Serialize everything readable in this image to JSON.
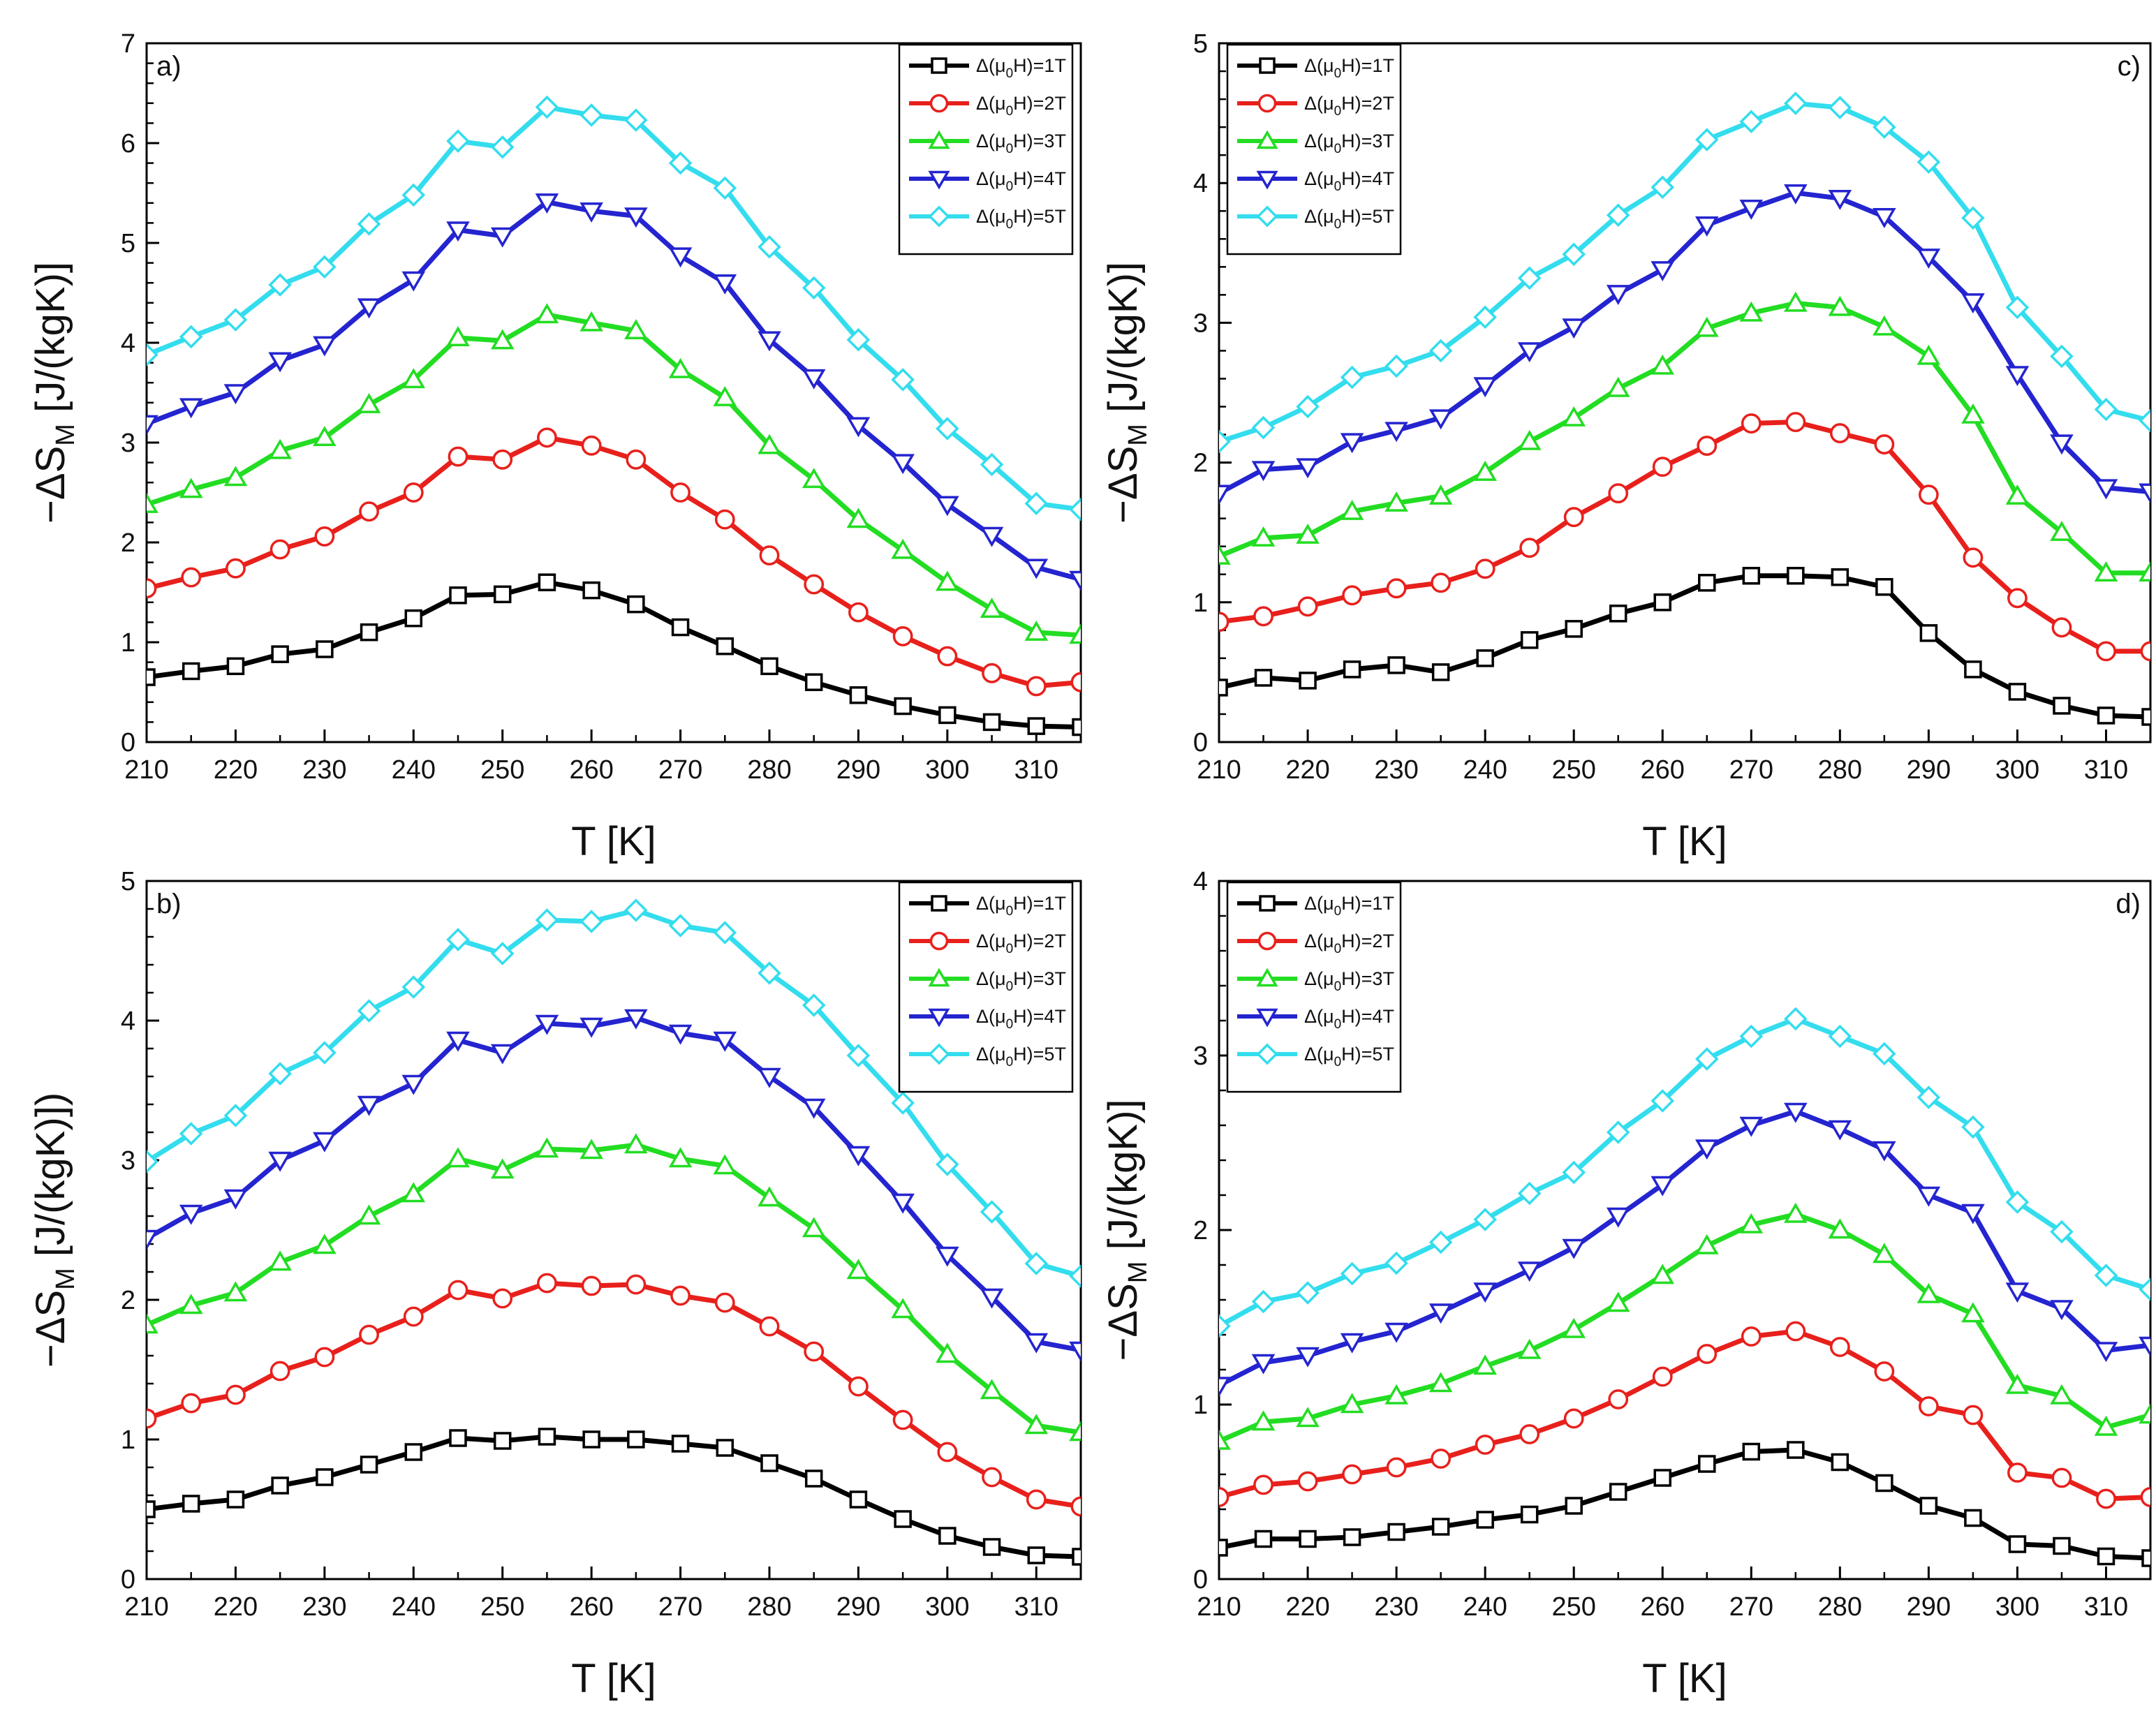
{
  "figure": {
    "description_free": true,
    "panels": [
      "a",
      "b",
      "c",
      "d"
    ]
  },
  "legend_labels": [
    "Δ(μ0H)=1T",
    "Δ(μ0H)=2T",
    "Δ(μ0H)=3T",
    "Δ(μ0H)=4T",
    "Δ(μ0H)=5T"
  ],
  "colors": {
    "1T": "#000000",
    "2T": "#e8201c",
    "3T": "#22dd22",
    "4T": "#2424d0",
    "5T": "#33ddee"
  },
  "markers": [
    "square",
    "circle",
    "triangle-up",
    "triangle-down",
    "diamond"
  ],
  "chart_data": [
    {
      "id": "a",
      "panel_label": "a)",
      "type": "line",
      "xlabel": "T [K]",
      "ylabel_main": "−ΔS",
      "ylabel_sub": "M",
      "ylabel_unit": " [J/(kgK)]",
      "xlim": [
        210,
        315
      ],
      "ylim": [
        0,
        7
      ],
      "xticks": [
        210,
        220,
        230,
        240,
        250,
        260,
        270,
        280,
        290,
        300,
        310
      ],
      "yticks": [
        0,
        1,
        2,
        3,
        4,
        5,
        6,
        7
      ],
      "legend_position": "top-right",
      "x": [
        210,
        215,
        220,
        225,
        230,
        235,
        240,
        245,
        250,
        255,
        260,
        265,
        270,
        275,
        280,
        285,
        290,
        295,
        300,
        305,
        310,
        315
      ],
      "series": [
        {
          "name": "Δ(μ0H)=1T",
          "values": [
            0.65,
            0.71,
            0.76,
            0.88,
            0.93,
            1.1,
            1.24,
            1.47,
            1.48,
            1.6,
            1.52,
            1.38,
            1.15,
            0.96,
            0.76,
            0.6,
            0.47,
            0.36,
            0.27,
            0.2,
            0.16,
            0.15
          ]
        },
        {
          "name": "Δ(μ0H)=2T",
          "values": [
            1.54,
            1.65,
            1.74,
            1.93,
            2.06,
            2.31,
            2.5,
            2.86,
            2.83,
            3.05,
            2.97,
            2.83,
            2.5,
            2.23,
            1.87,
            1.58,
            1.3,
            1.06,
            0.86,
            0.69,
            0.56,
            0.6
          ]
        },
        {
          "name": "Δ(μ0H)=3T",
          "values": [
            2.38,
            2.53,
            2.65,
            2.92,
            3.05,
            3.38,
            3.63,
            4.05,
            4.02,
            4.28,
            4.2,
            4.12,
            3.73,
            3.45,
            2.97,
            2.63,
            2.23,
            1.92,
            1.6,
            1.33,
            1.1,
            1.07
          ]
        },
        {
          "name": "Δ(μ0H)=4T",
          "values": [
            3.19,
            3.36,
            3.5,
            3.82,
            3.98,
            4.36,
            4.63,
            5.13,
            5.07,
            5.41,
            5.32,
            5.27,
            4.87,
            4.6,
            4.03,
            3.65,
            3.17,
            2.8,
            2.38,
            2.07,
            1.75,
            1.63
          ]
        },
        {
          "name": "Δ(μ0H)=5T",
          "values": [
            3.88,
            4.06,
            4.23,
            4.58,
            4.76,
            5.19,
            5.48,
            6.02,
            5.96,
            6.36,
            6.28,
            6.23,
            5.8,
            5.55,
            4.96,
            4.55,
            4.03,
            3.63,
            3.14,
            2.78,
            2.39,
            2.33
          ]
        }
      ]
    },
    {
      "id": "b",
      "panel_label": "b)",
      "type": "line",
      "xlabel": "T [K]",
      "ylabel_main": "−ΔS",
      "ylabel_sub": "M",
      "ylabel_unit": " [J/(kgK)])",
      "xlim": [
        210,
        315
      ],
      "ylim": [
        0,
        5
      ],
      "xticks": [
        210,
        220,
        230,
        240,
        250,
        260,
        270,
        280,
        290,
        300,
        310
      ],
      "yticks": [
        0,
        1,
        2,
        3,
        4,
        5
      ],
      "legend_position": "top-right",
      "x": [
        210,
        215,
        220,
        225,
        230,
        235,
        240,
        245,
        250,
        255,
        260,
        265,
        270,
        275,
        280,
        285,
        290,
        295,
        300,
        305,
        310,
        315
      ],
      "series": [
        {
          "name": "Δ(μ0H)=1T",
          "values": [
            0.5,
            0.54,
            0.57,
            0.67,
            0.73,
            0.82,
            0.91,
            1.01,
            0.99,
            1.02,
            1.0,
            1.0,
            0.97,
            0.94,
            0.83,
            0.72,
            0.57,
            0.43,
            0.31,
            0.23,
            0.17,
            0.16
          ]
        },
        {
          "name": "Δ(μ0H)=2T",
          "values": [
            1.15,
            1.26,
            1.32,
            1.49,
            1.59,
            1.75,
            1.88,
            2.07,
            2.01,
            2.12,
            2.1,
            2.11,
            2.03,
            1.98,
            1.81,
            1.63,
            1.38,
            1.14,
            0.91,
            0.73,
            0.57,
            0.52
          ]
        },
        {
          "name": "Δ(μ0H)=3T",
          "values": [
            1.82,
            1.96,
            2.05,
            2.27,
            2.39,
            2.6,
            2.76,
            3.01,
            2.93,
            3.08,
            3.07,
            3.11,
            3.01,
            2.96,
            2.73,
            2.51,
            2.21,
            1.93,
            1.61,
            1.35,
            1.1,
            1.05
          ]
        },
        {
          "name": "Δ(μ0H)=4T",
          "values": [
            2.44,
            2.62,
            2.73,
            3.0,
            3.14,
            3.4,
            3.55,
            3.86,
            3.77,
            3.98,
            3.96,
            4.02,
            3.91,
            3.86,
            3.6,
            3.38,
            3.04,
            2.7,
            2.32,
            2.02,
            1.7,
            1.64
          ]
        },
        {
          "name": "Δ(μ0H)=5T",
          "values": [
            2.99,
            3.19,
            3.32,
            3.62,
            3.77,
            4.07,
            4.24,
            4.58,
            4.48,
            4.72,
            4.71,
            4.79,
            4.68,
            4.63,
            4.34,
            4.11,
            3.75,
            3.41,
            2.97,
            2.63,
            2.26,
            2.17
          ]
        }
      ]
    },
    {
      "id": "c",
      "panel_label": "c)",
      "type": "line",
      "xlabel": "T [K]",
      "ylabel_main": "−ΔS",
      "ylabel_sub": "M",
      "ylabel_unit": " [J/(kgK)]",
      "xlim": [
        210,
        315
      ],
      "ylim": [
        0,
        5
      ],
      "xticks": [
        210,
        220,
        230,
        240,
        250,
        260,
        270,
        280,
        290,
        300,
        310
      ],
      "yticks": [
        0,
        1,
        2,
        3,
        4,
        5
      ],
      "legend_position": "top-left",
      "x": [
        210,
        215,
        220,
        225,
        230,
        235,
        240,
        245,
        250,
        255,
        260,
        265,
        270,
        275,
        280,
        285,
        290,
        295,
        300,
        305,
        310,
        315
      ],
      "series": [
        {
          "name": "Δ(μ0H)=1T",
          "values": [
            0.39,
            0.46,
            0.44,
            0.52,
            0.55,
            0.5,
            0.6,
            0.73,
            0.81,
            0.92,
            1.0,
            1.14,
            1.19,
            1.19,
            1.18,
            1.11,
            0.78,
            0.52,
            0.36,
            0.26,
            0.19,
            0.18
          ]
        },
        {
          "name": "Δ(μ0H)=2T",
          "values": [
            0.86,
            0.9,
            0.97,
            1.05,
            1.1,
            1.14,
            1.24,
            1.39,
            1.61,
            1.78,
            1.97,
            2.12,
            2.28,
            2.29,
            2.21,
            2.13,
            1.77,
            1.32,
            1.03,
            0.82,
            0.65,
            0.65
          ]
        },
        {
          "name": "Δ(μ0H)=3T",
          "values": [
            1.33,
            1.46,
            1.48,
            1.65,
            1.71,
            1.76,
            1.93,
            2.15,
            2.32,
            2.53,
            2.69,
            2.96,
            3.07,
            3.14,
            3.11,
            2.97,
            2.76,
            2.34,
            1.76,
            1.5,
            1.21,
            1.21
          ]
        },
        {
          "name": "Δ(μ0H)=4T",
          "values": [
            1.78,
            1.95,
            1.97,
            2.15,
            2.23,
            2.32,
            2.55,
            2.8,
            2.97,
            3.21,
            3.38,
            3.7,
            3.82,
            3.93,
            3.89,
            3.76,
            3.47,
            3.15,
            2.63,
            2.14,
            1.82,
            1.79
          ]
        },
        {
          "name": "Δ(μ0H)=5T",
          "values": [
            2.15,
            2.25,
            2.4,
            2.61,
            2.69,
            2.8,
            3.04,
            3.32,
            3.49,
            3.77,
            3.97,
            4.31,
            4.44,
            4.57,
            4.54,
            4.4,
            4.15,
            3.75,
            3.11,
            2.76,
            2.38,
            2.3
          ]
        }
      ]
    },
    {
      "id": "d",
      "panel_label": "d)",
      "type": "line",
      "xlabel": "T [K]",
      "ylabel_main": "−ΔS",
      "ylabel_sub": "M",
      "ylabel_unit": " [J/(kgK)]",
      "xlim": [
        210,
        315
      ],
      "ylim": [
        0,
        4
      ],
      "xticks": [
        210,
        220,
        230,
        240,
        250,
        260,
        270,
        280,
        290,
        300,
        310
      ],
      "yticks": [
        0,
        1,
        2,
        3,
        4
      ],
      "legend_position": "top-left",
      "x": [
        210,
        215,
        220,
        225,
        230,
        235,
        240,
        245,
        250,
        255,
        260,
        265,
        270,
        275,
        280,
        285,
        290,
        295,
        300,
        305,
        310,
        315
      ],
      "series": [
        {
          "name": "Δ(μ0H)=1T",
          "values": [
            0.18,
            0.23,
            0.23,
            0.24,
            0.27,
            0.3,
            0.34,
            0.37,
            0.42,
            0.5,
            0.58,
            0.66,
            0.73,
            0.74,
            0.67,
            0.55,
            0.42,
            0.35,
            0.2,
            0.19,
            0.13,
            0.12
          ]
        },
        {
          "name": "Δ(μ0H)=2T",
          "values": [
            0.47,
            0.54,
            0.56,
            0.6,
            0.64,
            0.69,
            0.77,
            0.83,
            0.92,
            1.03,
            1.16,
            1.29,
            1.39,
            1.42,
            1.33,
            1.19,
            0.99,
            0.94,
            0.61,
            0.58,
            0.46,
            0.47
          ]
        },
        {
          "name": "Δ(μ0H)=3T",
          "values": [
            0.79,
            0.9,
            0.92,
            1.0,
            1.05,
            1.12,
            1.22,
            1.31,
            1.43,
            1.58,
            1.74,
            1.91,
            2.03,
            2.09,
            2.0,
            1.86,
            1.63,
            1.52,
            1.11,
            1.05,
            0.87,
            0.94
          ]
        },
        {
          "name": "Δ(μ0H)=4T",
          "values": [
            1.11,
            1.24,
            1.28,
            1.36,
            1.42,
            1.53,
            1.65,
            1.77,
            1.9,
            2.08,
            2.26,
            2.47,
            2.6,
            2.68,
            2.58,
            2.46,
            2.2,
            2.1,
            1.65,
            1.55,
            1.31,
            1.34
          ]
        },
        {
          "name": "Δ(μ0H)=5T",
          "values": [
            1.45,
            1.59,
            1.64,
            1.75,
            1.81,
            1.93,
            2.06,
            2.21,
            2.33,
            2.56,
            2.74,
            2.98,
            3.11,
            3.21,
            3.11,
            3.01,
            2.76,
            2.59,
            2.16,
            1.99,
            1.74,
            1.66
          ]
        }
      ]
    }
  ]
}
